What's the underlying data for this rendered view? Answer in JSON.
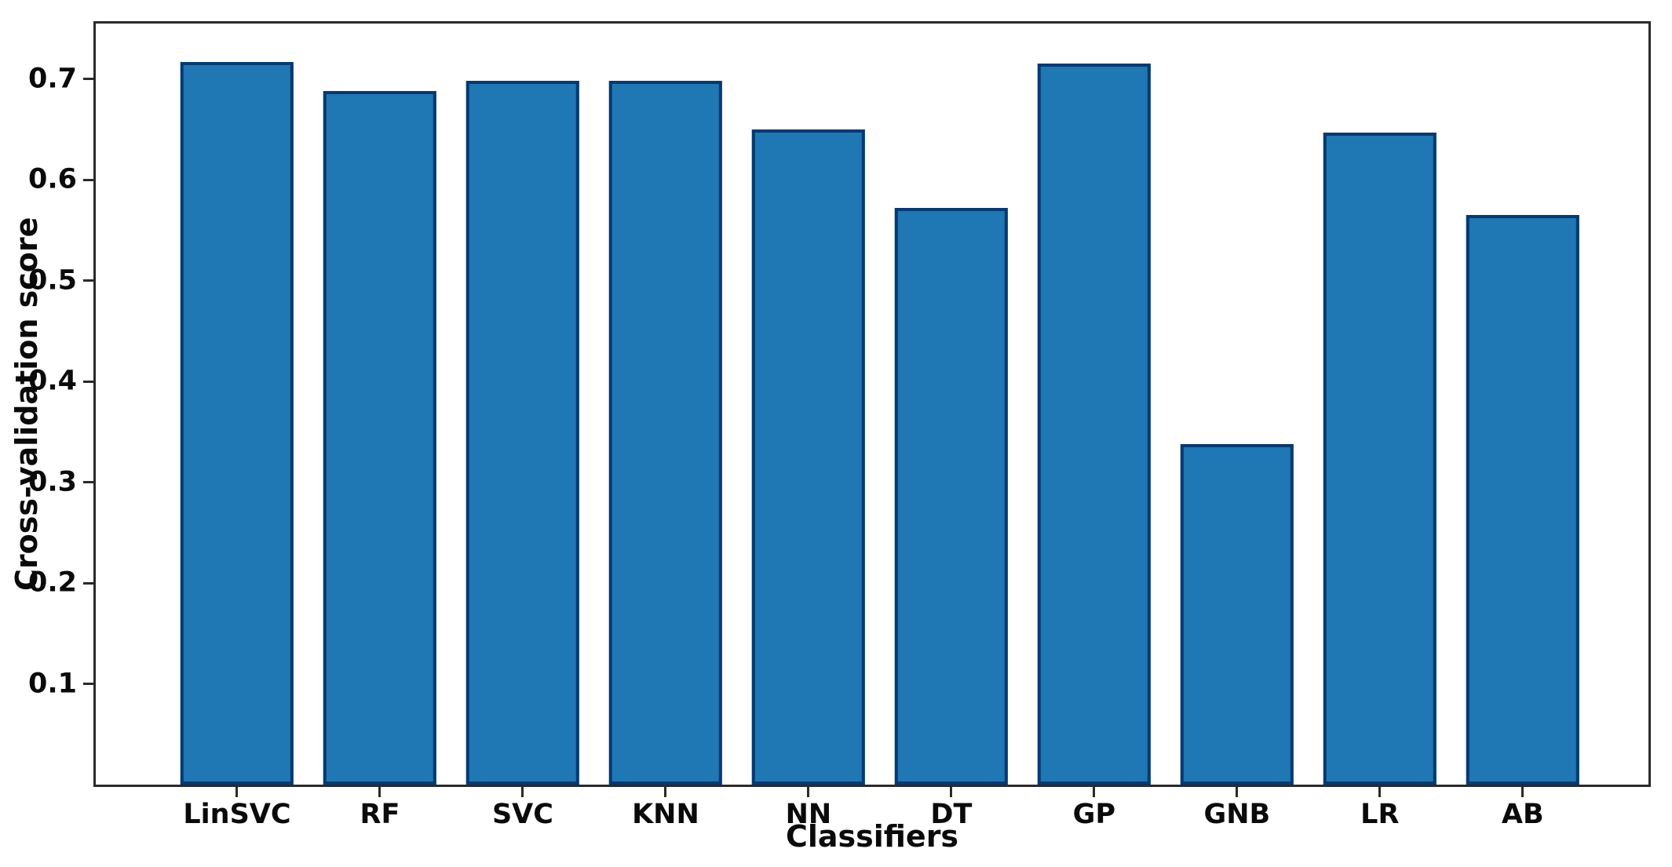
{
  "chart_data": {
    "type": "bar",
    "title": "",
    "xlabel": "Classifiers",
    "ylabel": "Cross-validation score",
    "categories": [
      "LinSVC",
      "RF",
      "SVC",
      "KNN",
      "NN",
      "DT",
      "GP",
      "GNB",
      "LR",
      "AB"
    ],
    "values": [
      0.717,
      0.688,
      0.698,
      0.698,
      0.65,
      0.572,
      0.715,
      0.338,
      0.647,
      0.565
    ],
    "yticks": [
      0.1,
      0.2,
      0.3,
      0.4,
      0.5,
      0.6,
      0.7
    ],
    "ylim": [
      0,
      0.755
    ],
    "grid": false,
    "legend": null,
    "bar_color": "#1f77b4",
    "bar_edge_color": "#063a70",
    "axis_color": "#2a2a2a",
    "text_color": "#0a0a0a"
  }
}
